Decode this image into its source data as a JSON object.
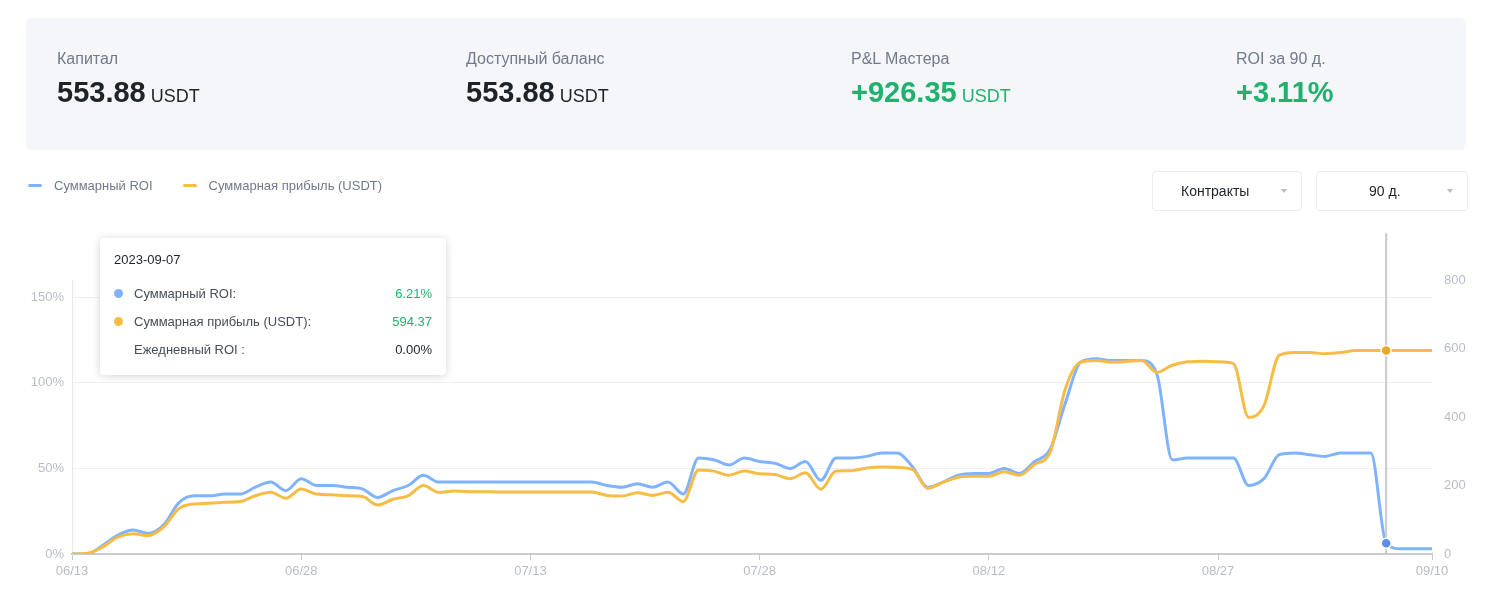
{
  "chart_data": [
    {
      "type": "other",
      "annotations": [
        "Капитал",
        "553.88 USDT",
        "Доступный баланс",
        "553.88 USDT",
        "P&L Мастера",
        "+926.35 USDT",
        "ROI за 90 д.",
        "+3.11%"
      ]
    },
    {
      "type": "line",
      "legend": "top left",
      "grid": "y",
      "marker": "none",
      "line_style": "solid",
      "x": [
        "--06-13",
        "--06-14",
        "--06-15",
        "--06-16",
        "--06-17",
        "--06-18",
        "--06-19",
        "--06-20",
        "--06-21",
        "--06-22",
        "--06-23",
        "--06-24",
        "--06-25",
        "--06-26",
        "--06-27",
        "--06-28",
        "--06-29",
        "--06-30",
        "--07-01",
        "--07-02",
        "--07-03",
        "--07-04",
        "--07-05",
        "--07-06",
        "--07-07",
        "--07-08",
        "--07-09",
        "--07-10",
        "--07-11",
        "--07-12",
        "--07-13",
        "--07-14",
        "--07-15",
        "--07-16",
        "--07-17",
        "--07-18",
        "--07-19",
        "--07-20",
        "--07-21",
        "--07-22",
        "--07-23",
        "--07-24",
        "--07-25",
        "--07-26",
        "--07-27",
        "--07-28",
        "--07-29",
        "--07-30",
        "--07-31",
        "--08-01",
        "--08-02",
        "--08-03",
        "--08-04",
        "--08-05",
        "--08-06",
        "--08-07",
        "--08-08",
        "--08-09",
        "--08-10",
        "--08-11",
        "--08-12",
        "--08-13",
        "--08-14",
        "--08-15",
        "--08-16",
        "--08-17",
        "--08-18",
        "--08-19",
        "--08-20",
        "--08-21",
        "--08-22",
        "--08-23",
        "--08-24",
        "--08-25",
        "--08-26",
        "--08-27",
        "--08-28",
        "--08-29",
        "--08-30",
        "--08-31",
        "--09-01",
        "--09-02",
        "--09-03",
        "--09-04",
        "--09-05",
        "--09-06",
        "--09-07",
        "--09-08",
        "--09-09",
        "--09-10"
      ],
      "series": [
        {
          "name": "Суммарный ROI",
          "color": "#80b3ff",
          "values": [
            0,
            0,
            5,
            11,
            14,
            12,
            17,
            30,
            34,
            34,
            35,
            35,
            39,
            42,
            37,
            44,
            40,
            40,
            39,
            38,
            33,
            37,
            40,
            46,
            42,
            42,
            42,
            42,
            42,
            42,
            42,
            42,
            42,
            42,
            42,
            40,
            39,
            41,
            39,
            42,
            35,
            56,
            55,
            52,
            56,
            54,
            53,
            50,
            54,
            43,
            56,
            56,
            57,
            59,
            59,
            51,
            39,
            42,
            46,
            47,
            47,
            50,
            47,
            54,
            61,
            88,
            112,
            114,
            113,
            113,
            113,
            105,
            55,
            56,
            56,
            56,
            56,
            40,
            44,
            58,
            59,
            58,
            57,
            59,
            59,
            59,
            6.21,
            3,
            3,
            3
          ]
        },
        {
          "name": "Суммарная прибыль (USDT)",
          "color": "#f7bc45",
          "axis": "y2",
          "values": [
            0,
            2,
            20,
            49,
            59,
            54,
            79,
            133,
            146,
            148,
            151,
            153,
            170,
            180,
            163,
            190,
            175,
            173,
            170,
            168,
            143,
            160,
            170,
            200,
            180,
            184,
            182,
            182,
            181,
            181,
            181,
            181,
            181,
            181,
            181,
            171,
            169,
            179,
            171,
            180,
            153,
            245,
            242,
            230,
            242,
            234,
            232,
            220,
            237,
            189,
            242,
            243,
            251,
            254,
            253,
            247,
            192,
            209,
            224,
            227,
            227,
            240,
            230,
            262,
            296,
            482,
            560,
            565,
            560,
            562,
            565,
            530,
            551,
            561,
            563,
            561,
            556,
            399,
            433,
            580,
            588,
            588,
            585,
            588,
            594,
            594,
            594.37,
            594,
            594,
            594
          ]
        }
      ],
      "xlim": [
        "--06-13",
        "--09-10"
      ],
      "xticks": [
        {
          "value": "--06-13",
          "label": "06/13"
        },
        {
          "value": "--06-28",
          "label": "06/28"
        },
        {
          "value": "--07-13",
          "label": "07/13"
        },
        {
          "value": "--07-28",
          "label": "07/28"
        },
        {
          "value": "--08-12",
          "label": "08/12"
        },
        {
          "value": "--08-27",
          "label": "08/27"
        },
        {
          "value": "--09-10",
          "label": "09/10"
        }
      ],
      "ylim": [
        0,
        160
      ],
      "yticks": [
        {
          "value": 0,
          "label": "0%"
        },
        {
          "value": 50,
          "label": "50%"
        },
        {
          "value": 100,
          "label": "100%"
        },
        {
          "value": 150,
          "label": "150%"
        }
      ],
      "y2lim": [
        0,
        800
      ],
      "y2ticks": [
        0,
        200,
        400,
        600,
        800
      ],
      "ref_lines": [
        {
          "axis": "x",
          "value": "--09-07",
          "color": "#c8cbd0"
        }
      ],
      "annotations": [
        "2023-09-07",
        "Суммарный ROI:",
        "6.21%",
        "Суммарная прибыль (USDT):",
        "594.37",
        "Ежедневный ROI :",
        "0.00%",
        "Контракты",
        "90 д."
      ]
    }
  ]
}
